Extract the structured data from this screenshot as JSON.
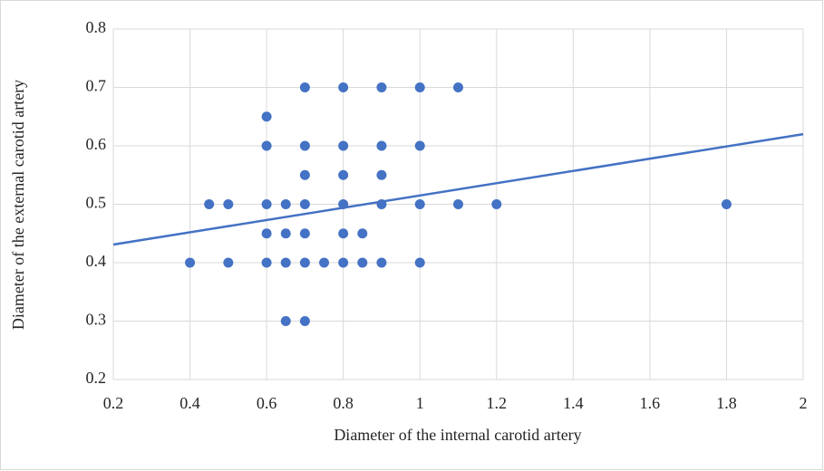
{
  "chart_data": {
    "type": "scatter",
    "x_label": "Diameter of the internal carotid artery",
    "y_label": "Diameter of the external carotid artery",
    "x": [
      0.7,
      0.8,
      0.9,
      1.0,
      1.1,
      0.6,
      0.6,
      0.7,
      0.8,
      0.9,
      1.0,
      0.7,
      0.8,
      0.9,
      0.45,
      0.5,
      0.6,
      0.65,
      0.7,
      0.8,
      0.9,
      1.0,
      1.1,
      1.2,
      1.8,
      0.6,
      0.65,
      0.7,
      0.8,
      0.85,
      0.4,
      0.5,
      0.6,
      0.65,
      0.7,
      0.75,
      0.8,
      0.85,
      0.9,
      1.0,
      0.65,
      0.7
    ],
    "y": [
      0.7,
      0.7,
      0.7,
      0.7,
      0.7,
      0.65,
      0.6,
      0.6,
      0.6,
      0.6,
      0.6,
      0.55,
      0.55,
      0.55,
      0.5,
      0.5,
      0.5,
      0.5,
      0.5,
      0.5,
      0.5,
      0.5,
      0.5,
      0.5,
      0.5,
      0.45,
      0.45,
      0.45,
      0.45,
      0.45,
      0.4,
      0.4,
      0.4,
      0.4,
      0.4,
      0.4,
      0.4,
      0.4,
      0.4,
      0.4,
      0.3,
      0.3
    ],
    "color": "#4472c4",
    "trendline": {
      "x": [
        0.2,
        2
      ],
      "y": [
        0.431,
        0.62
      ],
      "color": "#4472c4"
    },
    "xlim": [
      0.2,
      2
    ],
    "xticks": [
      0.2,
      0.4,
      0.6,
      0.8,
      1,
      1.2,
      1.4,
      1.6,
      1.8,
      2
    ],
    "ylim": [
      0.2,
      0.8
    ],
    "yticks": [
      0.2,
      0.3,
      0.4,
      0.5,
      0.6,
      0.7,
      0.8
    ],
    "grid": true
  }
}
